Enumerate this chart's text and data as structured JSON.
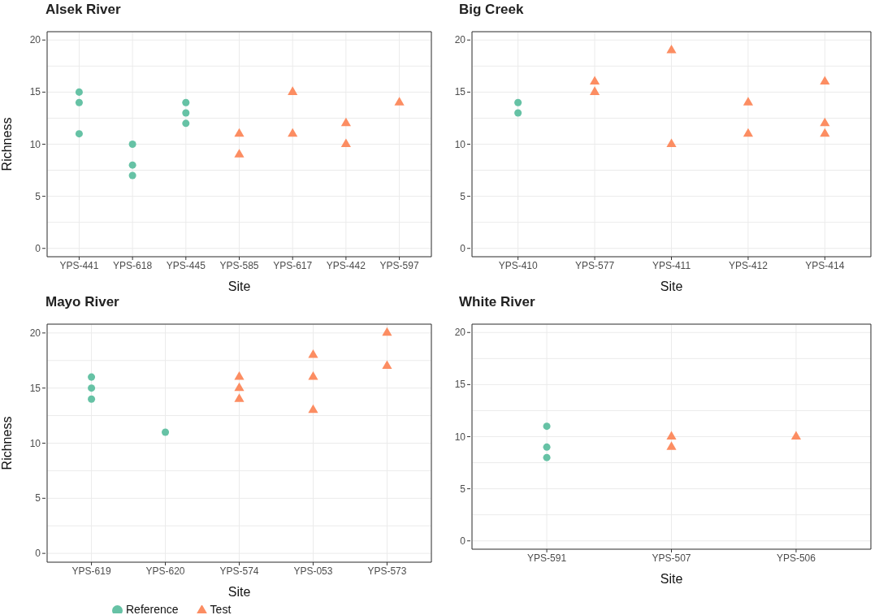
{
  "chart_data": [
    {
      "type": "scatter",
      "title": "Alsek River",
      "xlabel": "Site",
      "ylabel": "Richness",
      "categories": [
        "YPS-441",
        "YPS-618",
        "YPS-445",
        "YPS-585",
        "YPS-617",
        "YPS-442",
        "YPS-597"
      ],
      "ylim": [
        -0.8,
        20.8
      ],
      "yticks": [
        0,
        {
          "value": 2.5,
          "label": null
        },
        5,
        {
          "value": 7.5,
          "label": null
        },
        10,
        {
          "value": 12.5,
          "label": null
        },
        15,
        {
          "value": 17.5,
          "label": null
        },
        20
      ],
      "grid": true,
      "series": [
        {
          "color": "#66c2a5",
          "marker": "circle",
          "x": [
            "YPS-441",
            "YPS-441",
            "YPS-441",
            "YPS-618",
            "YPS-618",
            "YPS-618",
            "YPS-445",
            "YPS-445",
            "YPS-445"
          ],
          "values": [
            15,
            14,
            11,
            10,
            8,
            7,
            14,
            13,
            12
          ]
        },
        {
          "color": "#fc8d62",
          "marker": "triangle",
          "x": [
            "YPS-585",
            "YPS-585",
            "YPS-617",
            "YPS-617",
            "YPS-442",
            "YPS-442",
            "YPS-597"
          ],
          "values": [
            11,
            9,
            15,
            11,
            12,
            10,
            14
          ]
        }
      ]
    },
    {
      "type": "scatter",
      "title": "Big Creek",
      "xlabel": "Site",
      "categories": [
        "YPS-410",
        "YPS-577",
        "YPS-411",
        "YPS-412",
        "YPS-414"
      ],
      "ylim": [
        -0.8,
        20.8
      ],
      "yticks": [
        0,
        {
          "value": 2.5,
          "label": null
        },
        5,
        {
          "value": 7.5,
          "label": null
        },
        10,
        {
          "value": 12.5,
          "label": null
        },
        15,
        {
          "value": 17.5,
          "label": null
        },
        20
      ],
      "grid": true,
      "series": [
        {
          "color": "#66c2a5",
          "marker": "circle",
          "x": [
            "YPS-410",
            "YPS-410"
          ],
          "values": [
            14,
            13
          ]
        },
        {
          "color": "#fc8d62",
          "marker": "triangle",
          "x": [
            "YPS-577",
            "YPS-577",
            "YPS-411",
            "YPS-411",
            "YPS-412",
            "YPS-412",
            "YPS-414",
            "YPS-414",
            "YPS-414"
          ],
          "values": [
            16,
            15,
            19,
            10,
            14,
            11,
            16,
            12,
            11
          ]
        }
      ]
    },
    {
      "type": "scatter",
      "title": "Mayo River",
      "xlabel": "Site",
      "ylabel": "Richness",
      "categories": [
        "YPS-619",
        "YPS-620",
        "YPS-574",
        "YPS-053",
        "YPS-573"
      ],
      "ylim": [
        -0.8,
        20.8
      ],
      "yticks": [
        0,
        {
          "value": 2.5,
          "label": null
        },
        5,
        {
          "value": 7.5,
          "label": null
        },
        10,
        {
          "value": 12.5,
          "label": null
        },
        15,
        {
          "value": 17.5,
          "label": null
        },
        20
      ],
      "grid": true,
      "legend": "bottom",
      "series": [
        {
          "name": "Reference",
          "color": "#66c2a5",
          "marker": "circle",
          "x": [
            "YPS-619",
            "YPS-619",
            "YPS-619",
            "YPS-620"
          ],
          "values": [
            16,
            15,
            14,
            11
          ]
        },
        {
          "name": "Test",
          "color": "#fc8d62",
          "marker": "triangle",
          "x": [
            "YPS-574",
            "YPS-574",
            "YPS-574",
            "YPS-053",
            "YPS-053",
            "YPS-053",
            "YPS-573",
            "YPS-573"
          ],
          "values": [
            16,
            15,
            14,
            18,
            16,
            13,
            20,
            17
          ]
        }
      ]
    },
    {
      "type": "scatter",
      "title": "White River",
      "xlabel": "Site",
      "categories": [
        "YPS-591",
        "YPS-507",
        "YPS-506"
      ],
      "ylim": [
        -0.8,
        20.8
      ],
      "yticks": [
        0,
        {
          "value": 2.5,
          "label": null
        },
        5,
        {
          "value": 7.5,
          "label": null
        },
        10,
        {
          "value": 12.5,
          "label": null
        },
        15,
        {
          "value": 17.5,
          "label": null
        },
        20
      ],
      "grid": true,
      "series": [
        {
          "color": "#66c2a5",
          "marker": "circle",
          "x": [
            "YPS-591",
            "YPS-591",
            "YPS-591"
          ],
          "values": [
            11,
            9,
            8
          ]
        },
        {
          "color": "#fc8d62",
          "marker": "triangle",
          "x": [
            "YPS-507",
            "YPS-507",
            "YPS-506"
          ],
          "values": [
            10,
            9,
            10
          ]
        }
      ]
    }
  ]
}
